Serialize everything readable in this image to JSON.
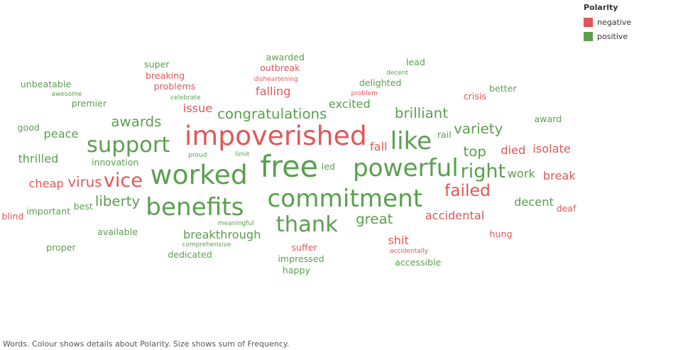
{
  "legend": {
    "title": "Polarity",
    "items": [
      {
        "label": "negative",
        "color": "#e05759"
      },
      {
        "label": "positive",
        "color": "#5aa04e"
      }
    ]
  },
  "caption": "Words.  Colour shows details about Polarity.  Size shows sum of Frequency.",
  "chart_data": {
    "type": "wordcloud",
    "encoding": {
      "color": "Polarity",
      "size": "sum of Frequency"
    },
    "words": [
      [
        "free",
        "p",
        10
      ],
      [
        "impoverished",
        "n",
        9
      ],
      [
        "worked",
        "p",
        9
      ],
      [
        "powerful",
        "p",
        8
      ],
      [
        "commitment",
        "p",
        8
      ],
      [
        "benefits",
        "p",
        8
      ],
      [
        "like",
        "p",
        8
      ],
      [
        "support",
        "p",
        7
      ],
      [
        "thank",
        "p",
        7
      ],
      [
        "vice",
        "n",
        6
      ],
      [
        "right",
        "p",
        6
      ],
      [
        "failed",
        "n",
        5
      ],
      [
        "congratulations",
        "p",
        4
      ],
      [
        "great",
        "p",
        4
      ],
      [
        "liberty",
        "p",
        4
      ],
      [
        "awards",
        "p",
        4
      ],
      [
        "brilliant",
        "p",
        4
      ],
      [
        "top",
        "p",
        4
      ],
      [
        "virus",
        "n",
        4
      ],
      [
        "variety",
        "p",
        4
      ],
      [
        "excited",
        "p",
        3
      ],
      [
        "issue",
        "n",
        3
      ],
      [
        "breakthrough",
        "p",
        3
      ],
      [
        "accidental",
        "n",
        3
      ],
      [
        "died",
        "n",
        3
      ],
      [
        "work",
        "p",
        3
      ],
      [
        "fall",
        "n",
        3
      ],
      [
        "cheap",
        "n",
        3
      ],
      [
        "thrilled",
        "p",
        3
      ],
      [
        "peace",
        "p",
        3
      ],
      [
        "falling",
        "n",
        3
      ],
      [
        "isolate",
        "n",
        3
      ],
      [
        "decent",
        "p",
        3
      ],
      [
        "break",
        "n",
        3
      ],
      [
        "shit",
        "n",
        3
      ],
      [
        "innovation",
        "p",
        2
      ],
      [
        "suffer",
        "n",
        2
      ],
      [
        "available",
        "p",
        2
      ],
      [
        "important",
        "p",
        2
      ],
      [
        "premier",
        "p",
        2
      ],
      [
        "problems",
        "n",
        2
      ],
      [
        "delighted",
        "p",
        2
      ],
      [
        "good",
        "p",
        2
      ],
      [
        "crisis",
        "n",
        2
      ],
      [
        "award",
        "p",
        2
      ],
      [
        "hung",
        "n",
        2
      ],
      [
        "impressed",
        "p",
        2
      ],
      [
        "dedicated",
        "p",
        2
      ],
      [
        "breaking",
        "n",
        2
      ],
      [
        "outbreak",
        "n",
        2
      ],
      [
        "accessible",
        "p",
        2
      ],
      [
        "better",
        "p",
        2
      ],
      [
        "happy",
        "p",
        2
      ],
      [
        "led",
        "p",
        2
      ],
      [
        "proper",
        "p",
        2
      ],
      [
        "unbeatable",
        "p",
        2
      ],
      [
        "super",
        "p",
        2
      ],
      [
        "awarded",
        "p",
        2
      ],
      [
        "best",
        "p",
        2
      ],
      [
        "blind",
        "n",
        2
      ],
      [
        "deaf",
        "n",
        2
      ],
      [
        "lead",
        "p",
        2
      ],
      [
        "rail",
        "p",
        2
      ],
      [
        "limit",
        "p",
        1
      ],
      [
        "proud",
        "p",
        1
      ],
      [
        "meaningful",
        "p",
        1
      ],
      [
        "celebrate",
        "p",
        1
      ],
      [
        "problem",
        "n",
        1
      ],
      [
        "comprehensive",
        "p",
        1
      ],
      [
        "disheartening",
        "n",
        1
      ],
      [
        "accidentally",
        "n",
        1
      ],
      [
        "awesome",
        "p",
        1
      ],
      [
        "decent",
        "p",
        1
      ]
    ]
  }
}
